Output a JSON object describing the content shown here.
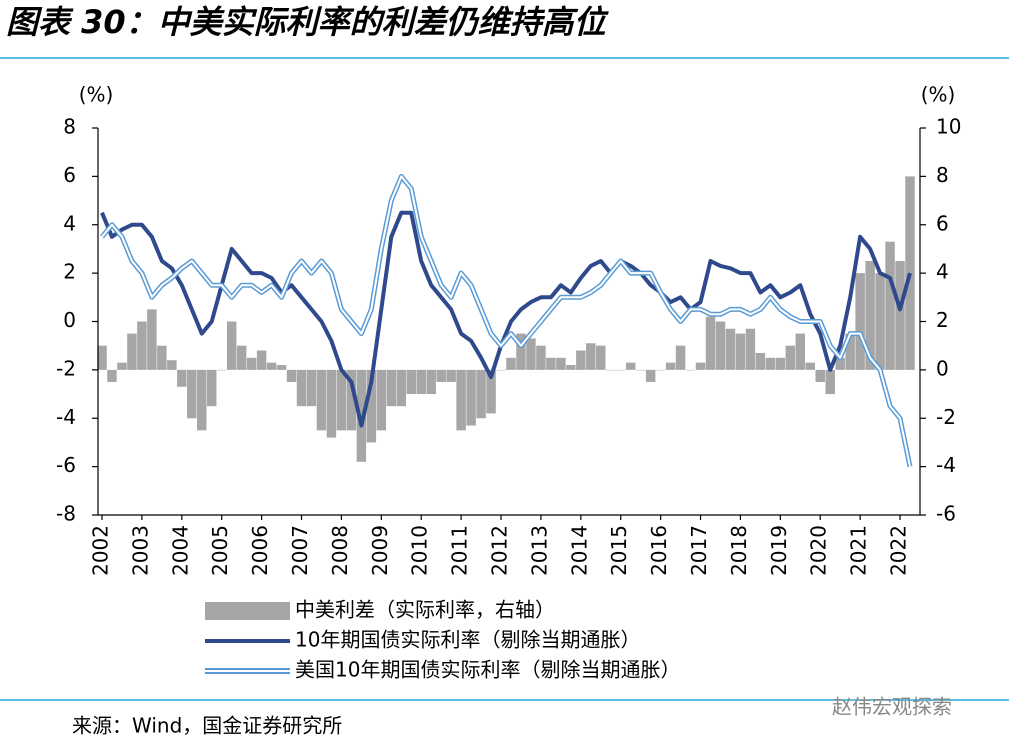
{
  "chart_data": {
    "type": "combo",
    "title": "图表 30：中美实际利率的利差仍维持高位",
    "ylabel": "(%)",
    "y2label": "(%)",
    "source": "来源：Wind，国金证券研究所",
    "watermark": "赵伟宏观探索",
    "x": [
      2002,
      2002.25,
      2002.5,
      2002.75,
      2003,
      2003.25,
      2003.5,
      2003.75,
      2004,
      2004.25,
      2004.5,
      2004.75,
      2005,
      2005.25,
      2005.5,
      2005.75,
      2006,
      2006.25,
      2006.5,
      2006.75,
      2007,
      2007.25,
      2007.5,
      2007.75,
      2008,
      2008.25,
      2008.5,
      2008.75,
      2009,
      2009.25,
      2009.5,
      2009.75,
      2010,
      2010.25,
      2010.5,
      2010.75,
      2011,
      2011.25,
      2011.5,
      2011.75,
      2012,
      2012.25,
      2012.5,
      2012.75,
      2013,
      2013.25,
      2013.5,
      2013.75,
      2014,
      2014.25,
      2014.5,
      2014.75,
      2015,
      2015.25,
      2015.5,
      2015.75,
      2016,
      2016.25,
      2016.5,
      2016.75,
      2017,
      2017.25,
      2017.5,
      2017.75,
      2018,
      2018.25,
      2018.5,
      2018.75,
      2019,
      2019.25,
      2019.5,
      2019.75,
      2020,
      2020.25,
      2020.5,
      2020.75,
      2021,
      2021.25,
      2021.5,
      2021.75,
      2022,
      2022.25
    ],
    "xlim": [
      2002,
      2022.4
    ],
    "xticks": [
      2002,
      2003,
      2004,
      2005,
      2006,
      2007,
      2008,
      2009,
      2010,
      2011,
      2012,
      2013,
      2014,
      2015,
      2016,
      2017,
      2018,
      2019,
      2020,
      2021,
      2022
    ],
    "ylim": [
      -8,
      8
    ],
    "yticks": [
      -8,
      -6,
      -4,
      -2,
      0,
      2,
      4,
      6,
      8
    ],
    "y2lim": [
      -6,
      10
    ],
    "y2ticks": [
      -6,
      -4,
      -2,
      0,
      2,
      4,
      6,
      8,
      10
    ],
    "series": [
      {
        "name": "中美利差（实际利率，右轴）",
        "type": "bar",
        "axis": "y2",
        "color": "#a6a6a6",
        "values": [
          1.0,
          -0.5,
          0.3,
          1.5,
          2.0,
          2.5,
          1.0,
          0.4,
          -0.7,
          -2.0,
          -2.5,
          -1.5,
          0,
          2.0,
          1.0,
          0.5,
          0.8,
          0.3,
          0.2,
          -0.5,
          -1.5,
          -1.5,
          -2.5,
          -2.8,
          -2.5,
          -2.5,
          -3.8,
          -3.0,
          -2.5,
          -1.5,
          -1.5,
          -1.0,
          -1.0,
          -1.0,
          -0.5,
          -0.5,
          -2.5,
          -2.3,
          -2.0,
          -1.8,
          0,
          0.5,
          1.5,
          1.3,
          1.0,
          0.5,
          0.5,
          0.2,
          0.8,
          1.1,
          1.0,
          0,
          0,
          0.3,
          0,
          -0.5,
          0,
          0.3,
          1.0,
          0,
          0.3,
          2.2,
          2.0,
          1.7,
          1.5,
          1.7,
          0.7,
          0.5,
          0.5,
          1.0,
          1.5,
          0.3,
          -0.5,
          -1.0,
          0.5,
          1.5,
          4.0,
          4.5,
          4.0,
          5.3,
          4.5,
          8.0
        ]
      },
      {
        "name": "10年期国债实际利率（剔除当期通胀）",
        "type": "line",
        "color": "#2e4a8c",
        "values": [
          4.5,
          3.5,
          3.8,
          4.0,
          4.0,
          3.5,
          2.5,
          2.2,
          1.5,
          0.5,
          -0.5,
          0,
          1.5,
          3.0,
          2.5,
          2.0,
          2.0,
          1.8,
          1.2,
          1.5,
          1.0,
          0.5,
          0,
          -0.8,
          -2.0,
          -2.5,
          -4.3,
          -2.5,
          0.5,
          3.5,
          4.5,
          4.5,
          2.5,
          1.5,
          1.0,
          0.5,
          -0.5,
          -0.8,
          -1.5,
          -2.3,
          -1.0,
          0,
          0.5,
          0.8,
          1.0,
          1.0,
          1.5,
          1.2,
          1.8,
          2.3,
          2.5,
          2.0,
          2.5,
          2.3,
          2.0,
          1.5,
          1.2,
          0.8,
          1.0,
          0.5,
          0.8,
          2.5,
          2.3,
          2.2,
          2.0,
          2.0,
          1.2,
          1.5,
          1.0,
          1.2,
          1.5,
          0.3,
          -0.5,
          -2.0,
          -1.0,
          1.0,
          3.5,
          3.0,
          2.0,
          1.8,
          0.5,
          2.0
        ]
      },
      {
        "name": "美国10年期国债实际利率（剔除当期通胀）",
        "type": "line",
        "style": "double",
        "color": "#5b9bd5",
        "values": [
          3.5,
          4.0,
          3.5,
          2.5,
          2.0,
          1.0,
          1.5,
          1.8,
          2.2,
          2.5,
          2.0,
          1.5,
          1.5,
          1.0,
          1.5,
          1.5,
          1.2,
          1.5,
          1.0,
          2.0,
          2.5,
          2.0,
          2.5,
          2.0,
          0.5,
          0,
          -0.5,
          0.5,
          3.0,
          5.0,
          6.0,
          5.5,
          3.5,
          2.5,
          1.5,
          1.0,
          2.0,
          1.5,
          0.5,
          -0.5,
          -1.0,
          -0.5,
          -1.0,
          -0.5,
          0,
          0.5,
          1.0,
          1.0,
          1.0,
          1.2,
          1.5,
          2.0,
          2.5,
          2.0,
          2.0,
          2.0,
          1.2,
          0.5,
          0,
          0.5,
          0.5,
          0.3,
          0.3,
          0.5,
          0.5,
          0.3,
          0.5,
          1.0,
          0.5,
          0.2,
          0,
          0,
          0,
          -1.0,
          -1.5,
          -0.5,
          -0.5,
          -1.5,
          -2.0,
          -3.5,
          -4.0,
          -6.0
        ]
      }
    ]
  }
}
